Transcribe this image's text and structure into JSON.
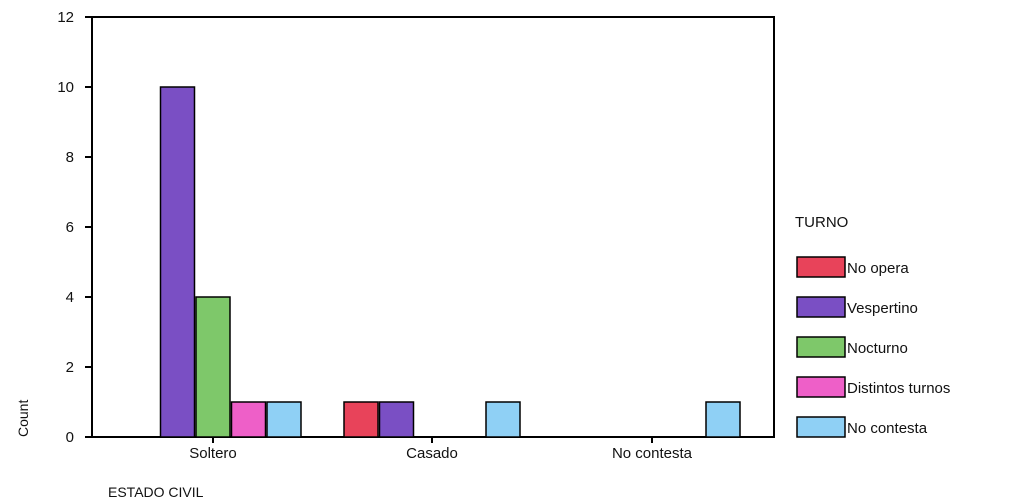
{
  "chart_data": {
    "type": "bar",
    "categories": [
      "Soltero",
      "Casado",
      "No contesta"
    ],
    "series": [
      {
        "name": "No opera",
        "color": "#e8435a",
        "values": [
          0,
          1,
          0
        ]
      },
      {
        "name": "Vespertino",
        "color": "#7a4fc4",
        "values": [
          10,
          1,
          0
        ]
      },
      {
        "name": "Nocturno",
        "color": "#7ec86a",
        "values": [
          4,
          0,
          0
        ]
      },
      {
        "name": "Distintos turnos",
        "color": "#ee5fc8",
        "values": [
          1,
          0,
          0
        ]
      },
      {
        "name": "No contesta",
        "color": "#8fd0f5",
        "values": [
          1,
          1,
          1
        ]
      }
    ],
    "xlabel": "ESTADO CIVIL",
    "ylabel": "Count",
    "ylim": [
      0,
      12
    ],
    "yticks": [
      0,
      2,
      4,
      6,
      8,
      10,
      12
    ],
    "legend_title": "TURNO",
    "legend_position": "right",
    "grid": false
  }
}
